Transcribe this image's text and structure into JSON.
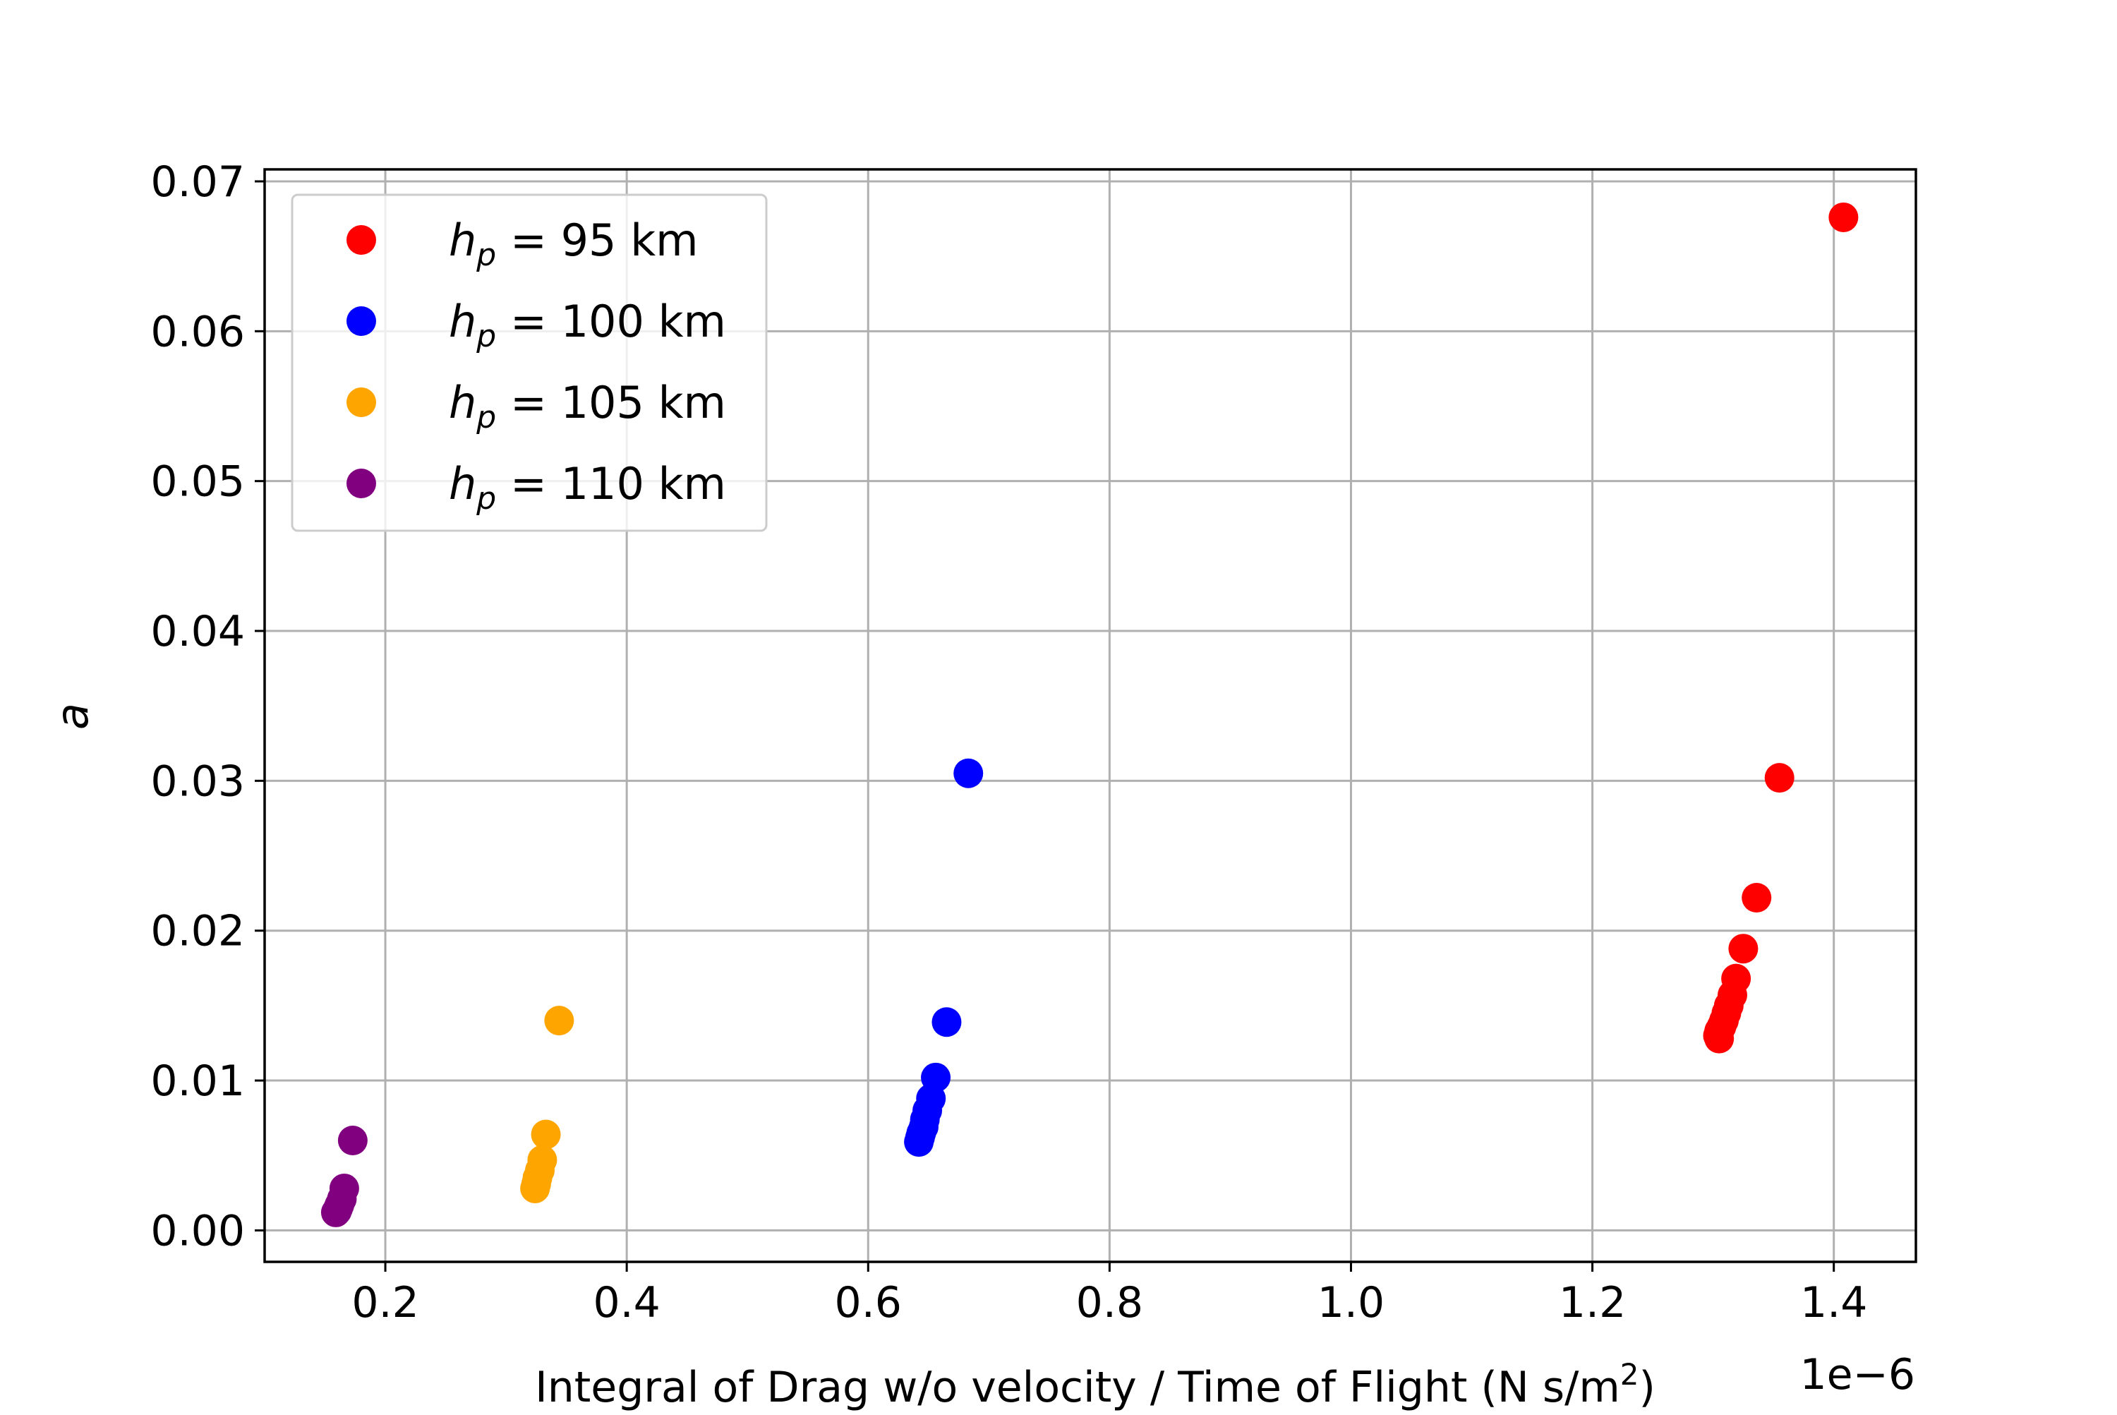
{
  "chart_data": {
    "type": "scatter",
    "xlabel_main": "Integral of Drag w/o velocity / Time of Flight (N s/m",
    "xlabel_sup": "2",
    "xlabel_end": ")",
    "ylabel": "a",
    "x_offset_label": "1e−6",
    "x_scale": 1e-06,
    "xlim": [
      0.1,
      1.468
    ],
    "ylim": [
      -0.0021,
      0.0708
    ],
    "grid": true,
    "legend_position": "upper-left",
    "x_ticks": [
      0.2,
      0.4,
      0.6,
      0.8,
      1.0,
      1.2,
      1.4
    ],
    "x_tick_labels": [
      "0.2",
      "0.4",
      "0.6",
      "0.8",
      "1.0",
      "1.2",
      "1.4"
    ],
    "y_ticks": [
      0.0,
      0.01,
      0.02,
      0.03,
      0.04,
      0.05,
      0.06,
      0.07
    ],
    "y_tick_labels": [
      "0.00",
      "0.01",
      "0.02",
      "0.03",
      "0.04",
      "0.05",
      "0.06",
      "0.07"
    ],
    "series": [
      {
        "name": "h_p = 95 km",
        "legend_var": "h",
        "legend_sub": "p",
        "legend_rest": "= 95 km",
        "color": "#ff0000",
        "points": [
          {
            "x": 1.408,
            "y": 0.0676
          },
          {
            "x": 1.355,
            "y": 0.0302
          },
          {
            "x": 1.336,
            "y": 0.0222
          },
          {
            "x": 1.325,
            "y": 0.0188
          },
          {
            "x": 1.319,
            "y": 0.0168
          },
          {
            "x": 1.316,
            "y": 0.0157
          },
          {
            "x": 1.313,
            "y": 0.015
          },
          {
            "x": 1.311,
            "y": 0.0145
          },
          {
            "x": 1.309,
            "y": 0.014
          },
          {
            "x": 1.307,
            "y": 0.0136
          },
          {
            "x": 1.305,
            "y": 0.0133
          },
          {
            "x": 1.304,
            "y": 0.013
          },
          {
            "x": 1.305,
            "y": 0.0128
          }
        ]
      },
      {
        "name": "h_p = 100 km",
        "legend_var": "h",
        "legend_sub": "p",
        "legend_rest": "= 100 km",
        "color": "#0000ff",
        "points": [
          {
            "x": 0.683,
            "y": 0.0305
          },
          {
            "x": 0.665,
            "y": 0.0139
          },
          {
            "x": 0.656,
            "y": 0.0102
          },
          {
            "x": 0.652,
            "y": 0.0088
          },
          {
            "x": 0.649,
            "y": 0.008
          },
          {
            "x": 0.647,
            "y": 0.0074
          },
          {
            "x": 0.646,
            "y": 0.0069
          },
          {
            "x": 0.644,
            "y": 0.0065
          },
          {
            "x": 0.643,
            "y": 0.0062
          },
          {
            "x": 0.642,
            "y": 0.0059
          }
        ]
      },
      {
        "name": "h_p = 105 km",
        "legend_var": "h",
        "legend_sub": "p",
        "legend_rest": "= 105 km",
        "color": "#ffa500",
        "points": [
          {
            "x": 0.344,
            "y": 0.014
          },
          {
            "x": 0.333,
            "y": 0.0064
          },
          {
            "x": 0.33,
            "y": 0.0047
          },
          {
            "x": 0.328,
            "y": 0.004
          },
          {
            "x": 0.326,
            "y": 0.0035
          },
          {
            "x": 0.325,
            "y": 0.0031
          },
          {
            "x": 0.324,
            "y": 0.0028
          }
        ]
      },
      {
        "name": "h_p = 110 km",
        "legend_var": "h",
        "legend_sub": "p",
        "legend_rest": "= 110 km",
        "color": "#800080",
        "points": [
          {
            "x": 0.173,
            "y": 0.006
          },
          {
            "x": 0.166,
            "y": 0.0028
          },
          {
            "x": 0.164,
            "y": 0.0021
          },
          {
            "x": 0.162,
            "y": 0.0017
          },
          {
            "x": 0.161,
            "y": 0.0015
          },
          {
            "x": 0.16,
            "y": 0.0013
          },
          {
            "x": 0.159,
            "y": 0.0012
          }
        ]
      }
    ]
  }
}
